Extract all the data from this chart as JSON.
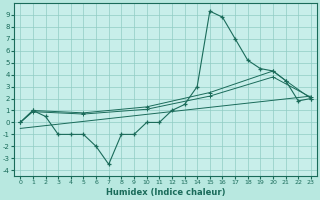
{
  "xlabel": "Humidex (Indice chaleur)",
  "bg_color": "#b8e8e0",
  "plot_bg_color": "#c8eeea",
  "line_color": "#1a6b5a",
  "grid_color": "#90ccc4",
  "xlim": [
    -0.5,
    23.5
  ],
  "ylim": [
    -4.5,
    10
  ],
  "xticks": [
    0,
    1,
    2,
    3,
    4,
    5,
    6,
    7,
    8,
    9,
    10,
    11,
    12,
    13,
    14,
    15,
    16,
    17,
    18,
    19,
    20,
    21,
    22,
    23
  ],
  "yticks": [
    -4,
    -3,
    -2,
    -1,
    0,
    1,
    2,
    3,
    4,
    5,
    6,
    7,
    8,
    9
  ],
  "main_x": [
    0,
    1,
    2,
    3,
    4,
    5,
    6,
    7,
    8,
    9,
    10,
    11,
    12,
    13,
    14,
    15,
    16,
    17,
    18,
    19,
    20,
    21,
    22,
    23
  ],
  "main_y": [
    0,
    1,
    0.5,
    -1,
    -1,
    -1,
    -2,
    -3.5,
    -1,
    -1,
    0,
    0,
    1,
    1.5,
    3,
    9.3,
    8.8,
    7,
    5.2,
    4.5,
    4.3,
    3.5,
    1.8,
    2
  ],
  "env1_x": [
    0,
    1,
    5,
    10,
    15,
    20,
    21,
    23
  ],
  "env1_y": [
    0,
    1,
    0.8,
    1.3,
    2.5,
    4.3,
    3.5,
    2.0
  ],
  "env2_x": [
    0,
    1,
    5,
    10,
    15,
    20,
    23
  ],
  "env2_y": [
    0,
    0.9,
    0.7,
    1.1,
    2.2,
    3.8,
    2.1
  ],
  "trend_x": [
    0,
    23
  ],
  "trend_y": [
    -0.5,
    2.2
  ]
}
